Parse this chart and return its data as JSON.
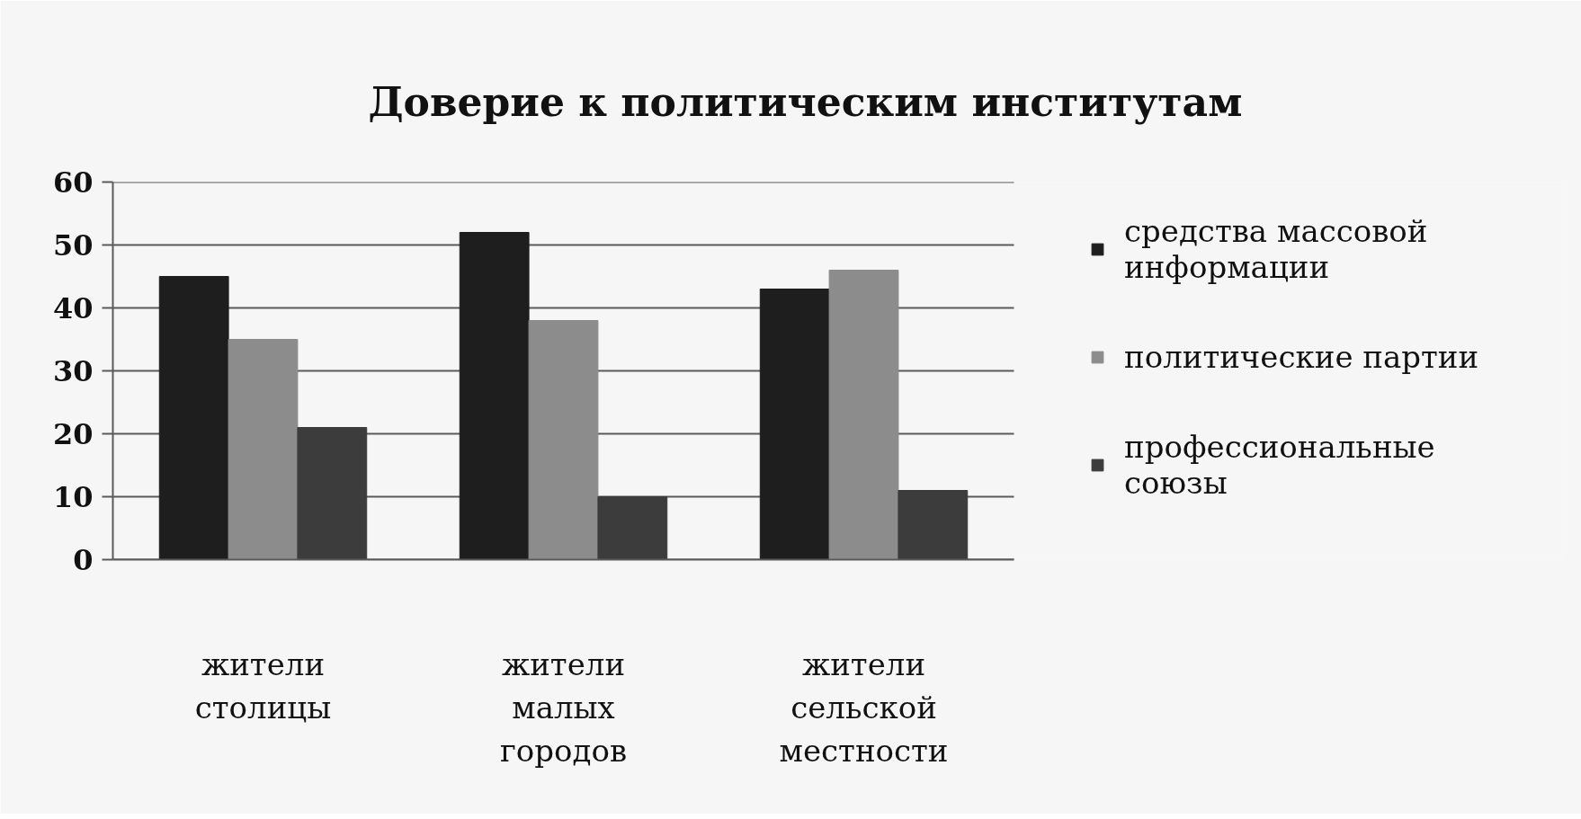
{
  "chart_data": {
    "type": "bar",
    "title": "Доверие к политическим институтам",
    "categories": [
      "жители столицы",
      "жители малых городов",
      "жители сельской местности"
    ],
    "series": [
      {
        "name": "средства массовой информации",
        "color": "#1e1e1e",
        "values": [
          45,
          52,
          43
        ]
      },
      {
        "name": "политические партии",
        "color": "#8c8c8c",
        "values": [
          35,
          38,
          46
        ]
      },
      {
        "name": "профессиональные союзы",
        "color": "#3c3c3c",
        "values": [
          21,
          10,
          11
        ]
      }
    ],
    "ylim": [
      0,
      60
    ],
    "yticks": [
      0,
      10,
      20,
      30,
      40,
      50,
      60
    ],
    "grid": "y",
    "legend": "right"
  }
}
